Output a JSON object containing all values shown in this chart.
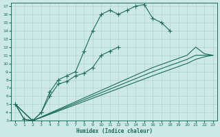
{
  "xlabel": "Humidex (Indice chaleur)",
  "bg_color": "#cce8e8",
  "grid_color": "#b0d4cc",
  "line_color": "#1a6b5a",
  "xlim": [
    -0.5,
    23.5
  ],
  "ylim": [
    3,
    17.4
  ],
  "yticks": [
    3,
    4,
    5,
    6,
    7,
    8,
    9,
    10,
    11,
    12,
    13,
    14,
    15,
    16,
    17
  ],
  "xticks": [
    0,
    1,
    2,
    3,
    4,
    5,
    6,
    7,
    8,
    9,
    10,
    11,
    12,
    13,
    14,
    15,
    16,
    17,
    18,
    19,
    20,
    21,
    22,
    23
  ],
  "line1_x": [
    0,
    1,
    2,
    3,
    4,
    5,
    6,
    7,
    8,
    9,
    10,
    11,
    12,
    13,
    14,
    15,
    16,
    17,
    18
  ],
  "line1_y": [
    5.0,
    3.2,
    3.0,
    4.0,
    6.5,
    8.0,
    8.5,
    9.0,
    11.5,
    14.0,
    16.0,
    16.5,
    16.0,
    16.5,
    17.0,
    17.2,
    15.5,
    15.0,
    14.0
  ],
  "line2_x": [
    0,
    1,
    2,
    3,
    4,
    5,
    6,
    7,
    8,
    9,
    10,
    11,
    12
  ],
  "line2_y": [
    5.0,
    3.2,
    3.0,
    4.0,
    6.0,
    7.5,
    7.8,
    8.5,
    8.8,
    9.5,
    11.0,
    11.5,
    12.0
  ],
  "line3_x": [
    0,
    2,
    16,
    20,
    21,
    22,
    23
  ],
  "line3_y": [
    5.0,
    3.0,
    9.5,
    11.0,
    12.0,
    11.2,
    11.0
  ],
  "line4_x": [
    0,
    2,
    16,
    20,
    21,
    22,
    23
  ],
  "line4_y": [
    5.0,
    3.0,
    9.0,
    10.5,
    11.0,
    11.0,
    11.0
  ],
  "line5_x": [
    0,
    2,
    16,
    20,
    21,
    22,
    23
  ],
  "line5_y": [
    5.0,
    3.0,
    8.5,
    10.0,
    10.5,
    10.8,
    11.0
  ]
}
